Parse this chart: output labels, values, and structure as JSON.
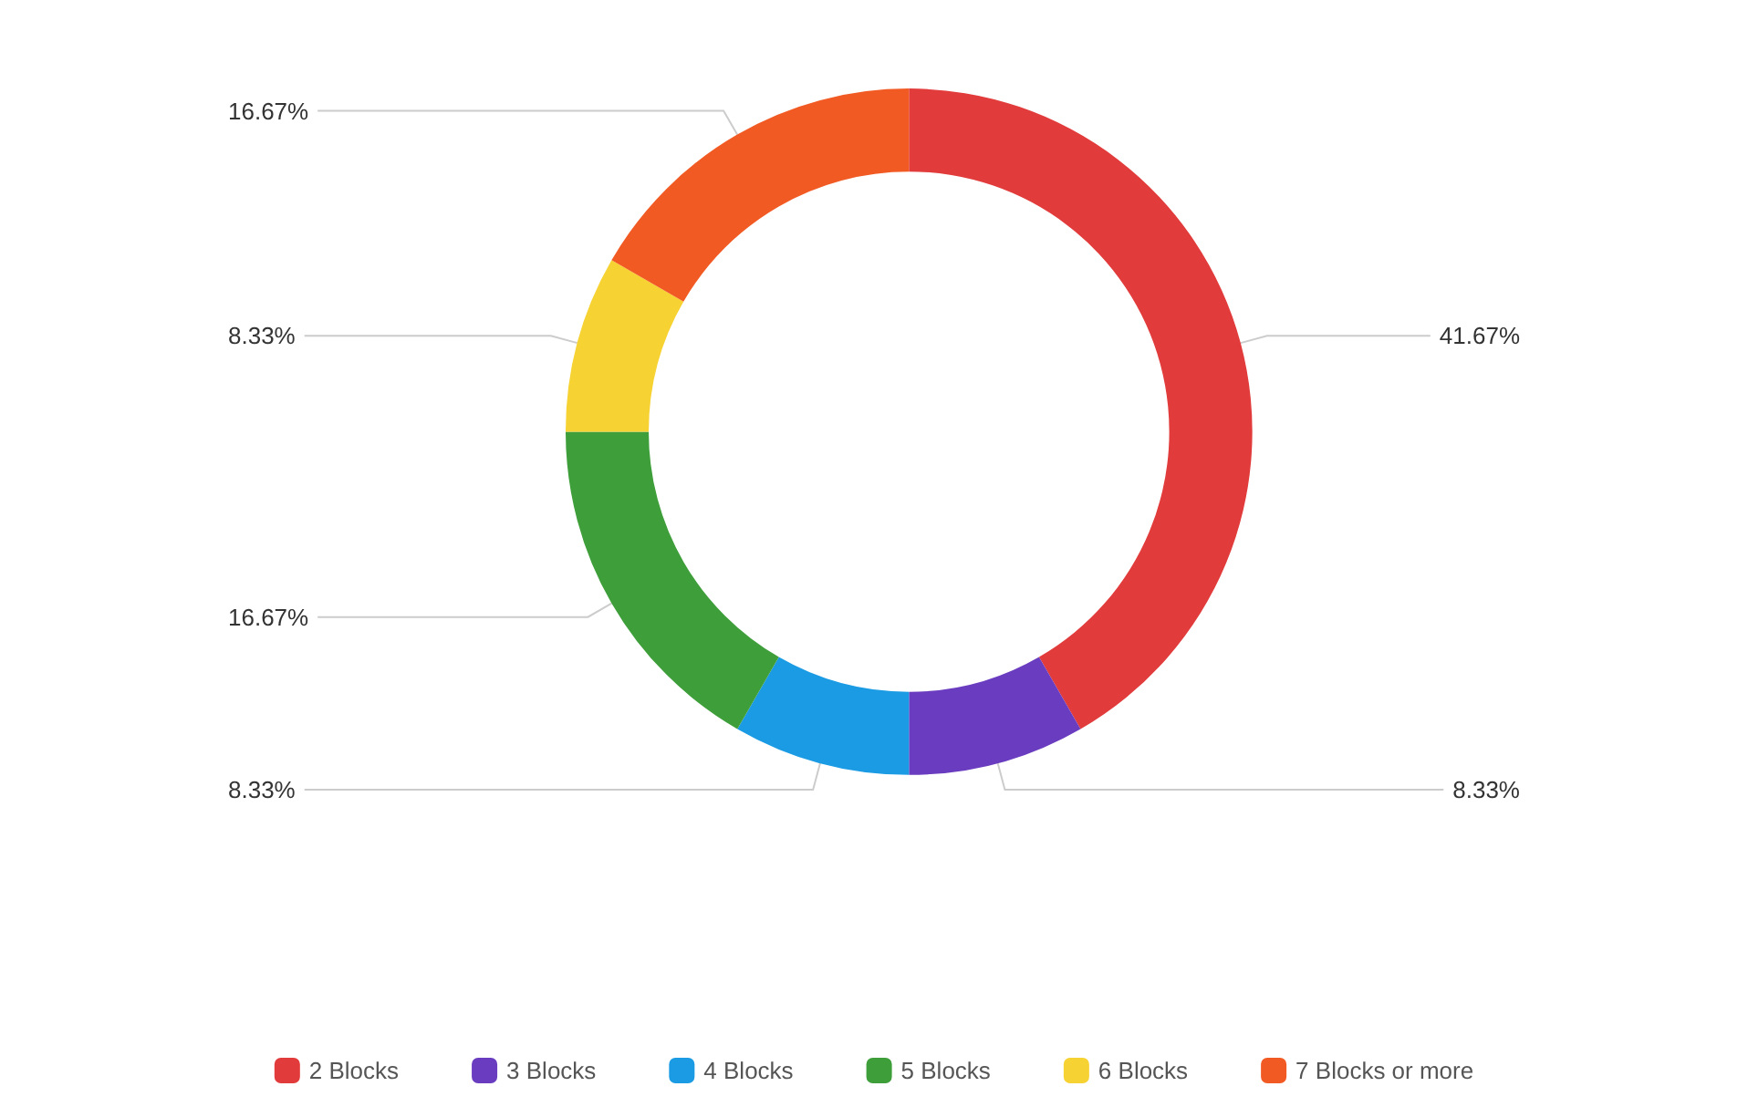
{
  "chart_data": {
    "type": "donut",
    "categories": [
      "2 Blocks",
      "3 Blocks",
      "4 Blocks",
      "5 Blocks",
      "6 Blocks",
      "7 Blocks or more"
    ],
    "values": [
      41.67,
      8.33,
      8.33,
      16.67,
      8.33,
      16.67
    ],
    "value_labels": [
      "41.67%",
      "8.33%",
      "8.33%",
      "16.67%",
      "8.33%",
      "16.67%"
    ],
    "colors": [
      "#e23b3b",
      "#6a3cbf",
      "#1a9be3",
      "#3e9e3a",
      "#f6d232",
      "#f25a24"
    ],
    "legend": "bottom"
  }
}
